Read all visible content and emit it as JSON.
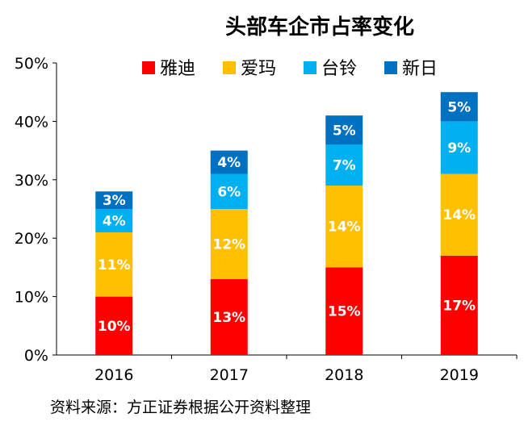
{
  "chart_data": {
    "type": "bar",
    "stacked": true,
    "title": "头部车企市占率变化",
    "categories": [
      "2016",
      "2017",
      "2018",
      "2019"
    ],
    "series": [
      {
        "name": "雅迪",
        "color": "#ff0000",
        "values": [
          10,
          13,
          15,
          17
        ],
        "labels": [
          "10%",
          "13%",
          "15%",
          "17%"
        ]
      },
      {
        "name": "爱玛",
        "color": "#ffc000",
        "values": [
          11,
          12,
          14,
          14
        ],
        "labels": [
          "11%",
          "12%",
          "14%",
          "14%"
        ]
      },
      {
        "name": "台铃",
        "color": "#00b0f0",
        "values": [
          4,
          6,
          7,
          9
        ],
        "labels": [
          "4%",
          "6%",
          "7%",
          "9%"
        ]
      },
      {
        "name": "新日",
        "color": "#0070c0",
        "values": [
          3,
          4,
          5,
          5
        ],
        "labels": [
          "3%",
          "4%",
          "5%",
          "5%"
        ]
      }
    ],
    "ylim": [
      0,
      50
    ],
    "yticks": [
      "0%",
      "10%",
      "20%",
      "30%",
      "40%",
      "50%"
    ],
    "legend_position": "top",
    "grid": false
  },
  "source_note": "资料来源：方正证券根据公开资料整理"
}
